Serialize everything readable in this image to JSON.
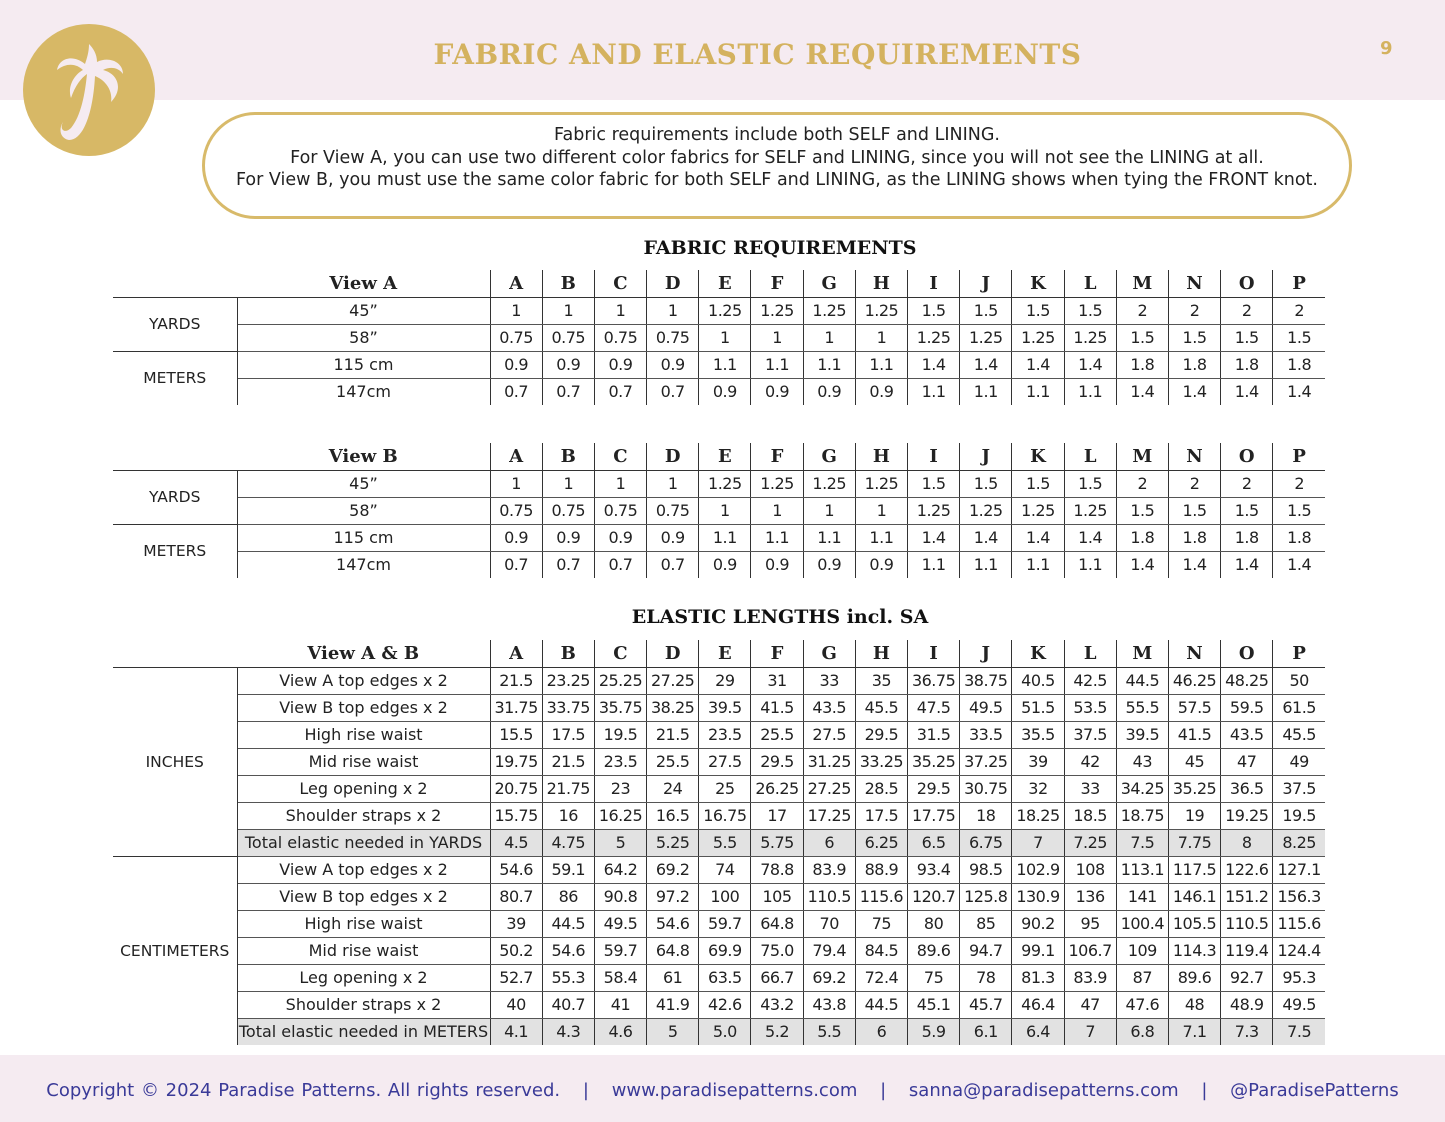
{
  "header": {
    "title": "FABRIC AND ELASTIC REQUIREMENTS",
    "page_number": "9",
    "logo_letter": "P"
  },
  "notice": {
    "lines": [
      "Fabric requirements include both SELF and LINING.",
      "For View A, you can use two different color fabrics for SELF and LINING, since you will not see the LINING at all.",
      "For View B, you must use the same color fabric for both SELF and LINING, as the LINING shows when tying the FRONT knot."
    ]
  },
  "colors": {
    "gold": "#d4b25f",
    "pink_band": "#f5ebf1",
    "footer_text": "#3a3a98",
    "total_row": "#e2e2e2"
  },
  "sizes": [
    "A",
    "B",
    "C",
    "D",
    "E",
    "F",
    "G",
    "H",
    "I",
    "J",
    "K",
    "L",
    "M",
    "N",
    "O",
    "P"
  ],
  "fabric": {
    "title": "FABRIC REQUIREMENTS",
    "tables": [
      {
        "header": "View A",
        "groups": [
          {
            "name": "YARDS",
            "rows": [
              {
                "label": "45”",
                "values": [
                  "1",
                  "1",
                  "1",
                  "1",
                  "1.25",
                  "1.25",
                  "1.25",
                  "1.25",
                  "1.5",
                  "1.5",
                  "1.5",
                  "1.5",
                  "2",
                  "2",
                  "2",
                  "2"
                ]
              },
              {
                "label": "58”",
                "values": [
                  "0.75",
                  "0.75",
                  "0.75",
                  "0.75",
                  "1",
                  "1",
                  "1",
                  "1",
                  "1.25",
                  "1.25",
                  "1.25",
                  "1.25",
                  "1.5",
                  "1.5",
                  "1.5",
                  "1.5"
                ]
              }
            ]
          },
          {
            "name": "METERS",
            "rows": [
              {
                "label": "115 cm",
                "values": [
                  "0.9",
                  "0.9",
                  "0.9",
                  "0.9",
                  "1.1",
                  "1.1",
                  "1.1",
                  "1.1",
                  "1.4",
                  "1.4",
                  "1.4",
                  "1.4",
                  "1.8",
                  "1.8",
                  "1.8",
                  "1.8"
                ]
              },
              {
                "label": "147cm",
                "values": [
                  "0.7",
                  "0.7",
                  "0.7",
                  "0.7",
                  "0.9",
                  "0.9",
                  "0.9",
                  "0.9",
                  "1.1",
                  "1.1",
                  "1.1",
                  "1.1",
                  "1.4",
                  "1.4",
                  "1.4",
                  "1.4"
                ]
              }
            ]
          }
        ]
      },
      {
        "header": "View B",
        "groups": [
          {
            "name": "YARDS",
            "rows": [
              {
                "label": "45”",
                "values": [
                  "1",
                  "1",
                  "1",
                  "1",
                  "1.25",
                  "1.25",
                  "1.25",
                  "1.25",
                  "1.5",
                  "1.5",
                  "1.5",
                  "1.5",
                  "2",
                  "2",
                  "2",
                  "2"
                ]
              },
              {
                "label": "58”",
                "values": [
                  "0.75",
                  "0.75",
                  "0.75",
                  "0.75",
                  "1",
                  "1",
                  "1",
                  "1",
                  "1.25",
                  "1.25",
                  "1.25",
                  "1.25",
                  "1.5",
                  "1.5",
                  "1.5",
                  "1.5"
                ]
              }
            ]
          },
          {
            "name": "METERS",
            "rows": [
              {
                "label": "115 cm",
                "values": [
                  "0.9",
                  "0.9",
                  "0.9",
                  "0.9",
                  "1.1",
                  "1.1",
                  "1.1",
                  "1.1",
                  "1.4",
                  "1.4",
                  "1.4",
                  "1.4",
                  "1.8",
                  "1.8",
                  "1.8",
                  "1.8"
                ]
              },
              {
                "label": "147cm",
                "values": [
                  "0.7",
                  "0.7",
                  "0.7",
                  "0.7",
                  "0.9",
                  "0.9",
                  "0.9",
                  "0.9",
                  "1.1",
                  "1.1",
                  "1.1",
                  "1.1",
                  "1.4",
                  "1.4",
                  "1.4",
                  "1.4"
                ]
              }
            ]
          }
        ]
      }
    ]
  },
  "elastic": {
    "title": "ELASTIC LENGTHS incl. SA",
    "table": {
      "header": "View A & B",
      "groups": [
        {
          "name": "INCHES",
          "rows": [
            {
              "label": "View A top edges x 2",
              "values": [
                "21.5",
                "23.25",
                "25.25",
                "27.25",
                "29",
                "31",
                "33",
                "35",
                "36.75",
                "38.75",
                "40.5",
                "42.5",
                "44.5",
                "46.25",
                "48.25",
                "50"
              ]
            },
            {
              "label": "View B top edges x 2",
              "values": [
                "31.75",
                "33.75",
                "35.75",
                "38.25",
                "39.5",
                "41.5",
                "43.5",
                "45.5",
                "47.5",
                "49.5",
                "51.5",
                "53.5",
                "55.5",
                "57.5",
                "59.5",
                "61.5"
              ]
            },
            {
              "label": "High rise waist",
              "values": [
                "15.5",
                "17.5",
                "19.5",
                "21.5",
                "23.5",
                "25.5",
                "27.5",
                "29.5",
                "31.5",
                "33.5",
                "35.5",
                "37.5",
                "39.5",
                "41.5",
                "43.5",
                "45.5"
              ]
            },
            {
              "label": "Mid rise waist",
              "values": [
                "19.75",
                "21.5",
                "23.5",
                "25.5",
                "27.5",
                "29.5",
                "31.25",
                "33.25",
                "35.25",
                "37.25",
                "39",
                "42",
                "43",
                "45",
                "47",
                "49"
              ]
            },
            {
              "label": "Leg opening x 2",
              "values": [
                "20.75",
                "21.75",
                "23",
                "24",
                "25",
                "26.25",
                "27.25",
                "28.5",
                "29.5",
                "30.75",
                "32",
                "33",
                "34.25",
                "35.25",
                "36.5",
                "37.5"
              ]
            },
            {
              "label": "Shoulder straps x 2",
              "values": [
                "15.75",
                "16",
                "16.25",
                "16.5",
                "16.75",
                "17",
                "17.25",
                "17.5",
                "17.75",
                "18",
                "18.25",
                "18.5",
                "18.75",
                "19",
                "19.25",
                "19.5"
              ]
            },
            {
              "label": "Total elastic needed in YARDS",
              "total": true,
              "values": [
                "4.5",
                "4.75",
                "5",
                "5.25",
                "5.5",
                "5.75",
                "6",
                "6.25",
                "6.5",
                "6.75",
                "7",
                "7.25",
                "7.5",
                "7.75",
                "8",
                "8.25"
              ]
            }
          ]
        },
        {
          "name": "CENTIMETERS",
          "rows": [
            {
              "label": "View A top edges x 2",
              "values": [
                "54.6",
                "59.1",
                "64.2",
                "69.2",
                "74",
                "78.8",
                "83.9",
                "88.9",
                "93.4",
                "98.5",
                "102.9",
                "108",
                "113.1",
                "117.5",
                "122.6",
                "127.1"
              ]
            },
            {
              "label": "View B top edges x 2",
              "values": [
                "80.7",
                "86",
                "90.8",
                "97.2",
                "100",
                "105",
                "110.5",
                "115.6",
                "120.7",
                "125.8",
                "130.9",
                "136",
                "141",
                "146.1",
                "151.2",
                "156.3"
              ]
            },
            {
              "label": "High rise waist",
              "values": [
                "39",
                "44.5",
                "49.5",
                "54.6",
                "59.7",
                "64.8",
                "70",
                "75",
                "80",
                "85",
                "90.2",
                "95",
                "100.4",
                "105.5",
                "110.5",
                "115.6"
              ]
            },
            {
              "label": "Mid rise waist",
              "values": [
                "50.2",
                "54.6",
                "59.7",
                "64.8",
                "69.9",
                "75.0",
                "79.4",
                "84.5",
                "89.6",
                "94.7",
                "99.1",
                "106.7",
                "109",
                "114.3",
                "119.4",
                "124.4"
              ]
            },
            {
              "label": "Leg opening x 2",
              "values": [
                "52.7",
                "55.3",
                "58.4",
                "61",
                "63.5",
                "66.7",
                "69.2",
                "72.4",
                "75",
                "78",
                "81.3",
                "83.9",
                "87",
                "89.6",
                "92.7",
                "95.3"
              ]
            },
            {
              "label": "Shoulder straps x 2",
              "values": [
                "40",
                "40.7",
                "41",
                "41.9",
                "42.6",
                "43.2",
                "43.8",
                "44.5",
                "45.1",
                "45.7",
                "46.4",
                "47",
                "47.6",
                "48",
                "48.9",
                "49.5"
              ]
            },
            {
              "label": "Total elastic needed in METERS",
              "total": true,
              "values": [
                "4.1",
                "4.3",
                "4.6",
                "5",
                "5.0",
                "5.2",
                "5.5",
                "6",
                "5.9",
                "6.1",
                "6.4",
                "7",
                "6.8",
                "7.1",
                "7.3",
                "7.5"
              ]
            }
          ]
        }
      ]
    }
  },
  "footer": {
    "copyright": "Copyright © 2024 Paradise Patterns. All rights reserved.",
    "separator": "|",
    "website": "www.paradisepatterns.com",
    "email": "sanna@paradisepatterns.com",
    "social": "@ParadisePatterns"
  }
}
